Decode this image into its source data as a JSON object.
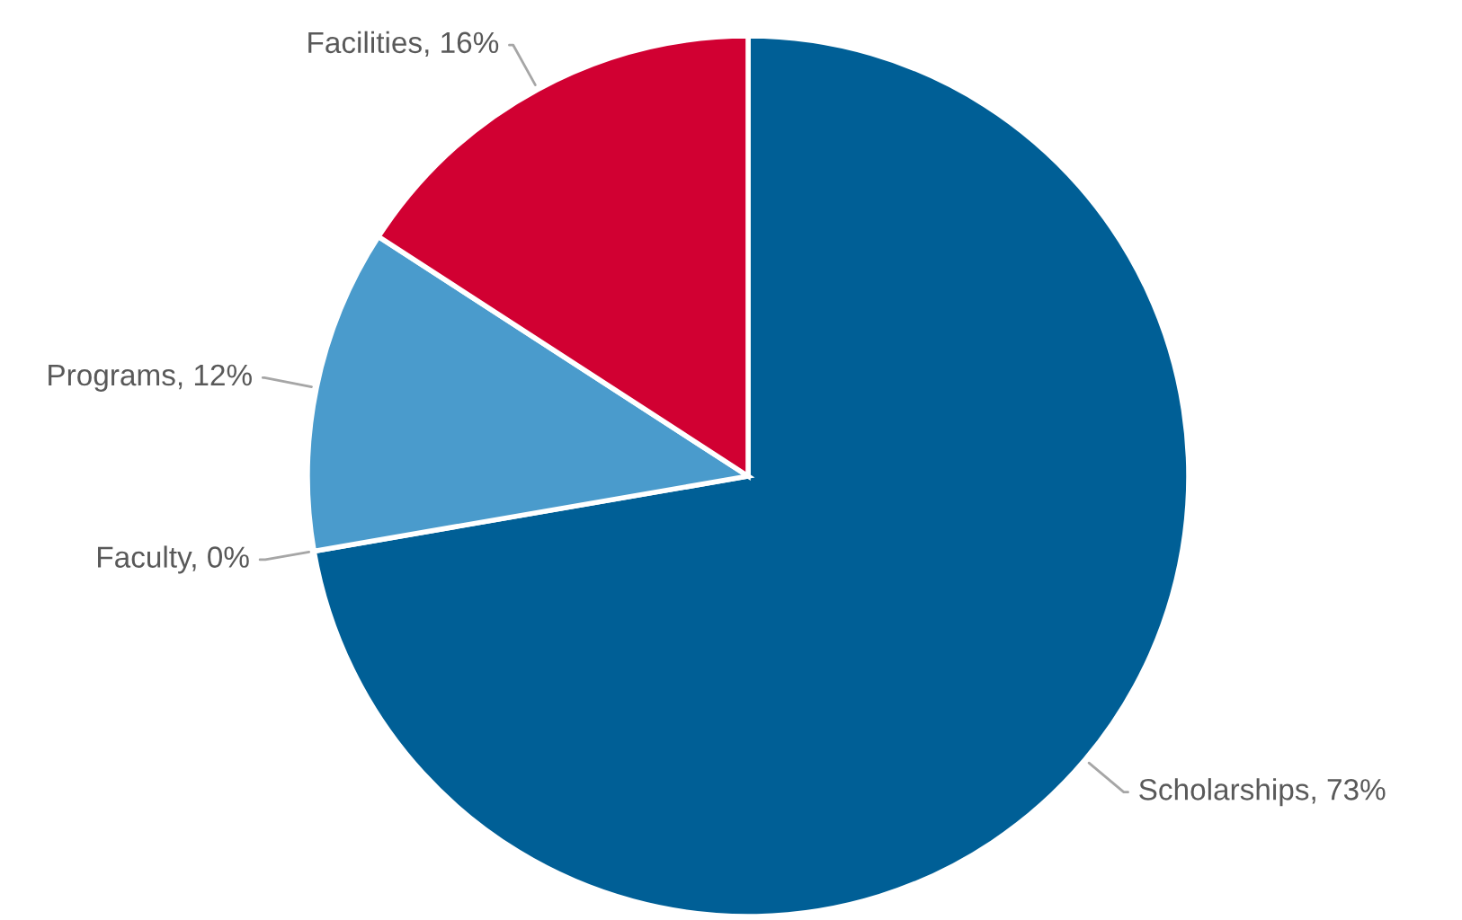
{
  "chart_data": {
    "type": "pie",
    "categories": [
      "Scholarships",
      "Faculty",
      "Programs",
      "Facilities"
    ],
    "values": [
      73,
      0,
      12,
      16
    ],
    "value_labels": [
      "73%",
      "0%",
      "12%",
      "16%"
    ],
    "colors": [
      "#005f96",
      "#7f7f7f",
      "#4a9bcc",
      "#d10032"
    ]
  }
}
